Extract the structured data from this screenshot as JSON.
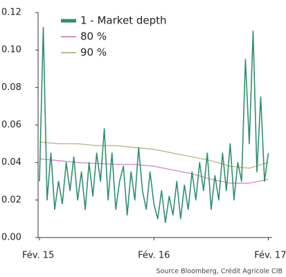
{
  "chart_data": {
    "type": "line",
    "xlim": [
      0,
      24.4
    ],
    "xticks": [
      {
        "value": 0,
        "label": "Fév. 15"
      },
      {
        "value": 12,
        "label": "Fév. 16"
      },
      {
        "value": 24,
        "label": "Fév. 17"
      }
    ],
    "ylim": [
      0,
      0.12
    ],
    "yticks": [
      {
        "value": 0,
        "label": "0.00"
      },
      0.02,
      0.04,
      0.06,
      0.08,
      {
        "value": 0.1,
        "label": "0.10"
      },
      0.12
    ],
    "grid": false,
    "legend": "top-left",
    "source": "Source Bloomberg, Crédit Agricole CIB",
    "series": [
      {
        "name": "1 - Market depth",
        "color": "#2f8f6a",
        "width": 1.6,
        "x": [
          0,
          0.4,
          0.8,
          1.2,
          1.6,
          2.0,
          2.4,
          2.8,
          3.2,
          3.6,
          4.0,
          4.4,
          4.8,
          5.2,
          5.6,
          6.0,
          6.4,
          6.8,
          7.2,
          7.6,
          8.0,
          8.4,
          8.8,
          9.2,
          9.6,
          10.0,
          10.4,
          10.8,
          11.2,
          11.6,
          12.0,
          12.4,
          12.8,
          13.2,
          13.6,
          14.0,
          14.4,
          14.8,
          15.2,
          15.6,
          16.0,
          16.4,
          16.8,
          17.2,
          17.6,
          18.0,
          18.4,
          18.8,
          19.2,
          19.6,
          20.0,
          20.4,
          20.8,
          21.2,
          21.6,
          22.0,
          22.4,
          22.8,
          23.2,
          23.6,
          24.0
        ],
        "values": [
          0.03,
          0.112,
          0.02,
          0.045,
          0.015,
          0.03,
          0.018,
          0.04,
          0.025,
          0.043,
          0.02,
          0.035,
          0.015,
          0.04,
          0.022,
          0.045,
          0.03,
          0.058,
          0.02,
          0.045,
          0.015,
          0.03,
          0.038,
          0.012,
          0.035,
          0.02,
          0.048,
          0.025,
          0.015,
          0.035,
          0.018,
          0.01,
          0.025,
          0.008,
          0.022,
          0.012,
          0.03,
          0.01,
          0.028,
          0.015,
          0.035,
          0.02,
          0.04,
          0.025,
          0.045,
          0.015,
          0.033,
          0.02,
          0.045,
          0.025,
          0.05,
          0.02,
          0.04,
          0.03,
          0.095,
          0.05,
          0.11,
          0.035,
          0.075,
          0.03,
          0.045
        ]
      },
      {
        "name": "80 %",
        "color": "#d98cc8",
        "width": 1.4,
        "x": [
          0,
          2,
          4,
          6,
          8,
          10,
          12,
          14,
          16,
          18,
          20,
          22,
          24
        ],
        "values": [
          0.042,
          0.041,
          0.04,
          0.0395,
          0.039,
          0.039,
          0.038,
          0.036,
          0.034,
          0.031,
          0.029,
          0.029,
          0.031
        ]
      },
      {
        "name": "90 %",
        "color": "#bdb68e",
        "width": 1.4,
        "x": [
          0,
          2,
          4,
          6,
          8,
          10,
          12,
          14,
          16,
          18,
          20,
          22,
          24
        ],
        "values": [
          0.051,
          0.05,
          0.05,
          0.049,
          0.049,
          0.048,
          0.047,
          0.045,
          0.043,
          0.041,
          0.038,
          0.037,
          0.04
        ]
      }
    ]
  }
}
